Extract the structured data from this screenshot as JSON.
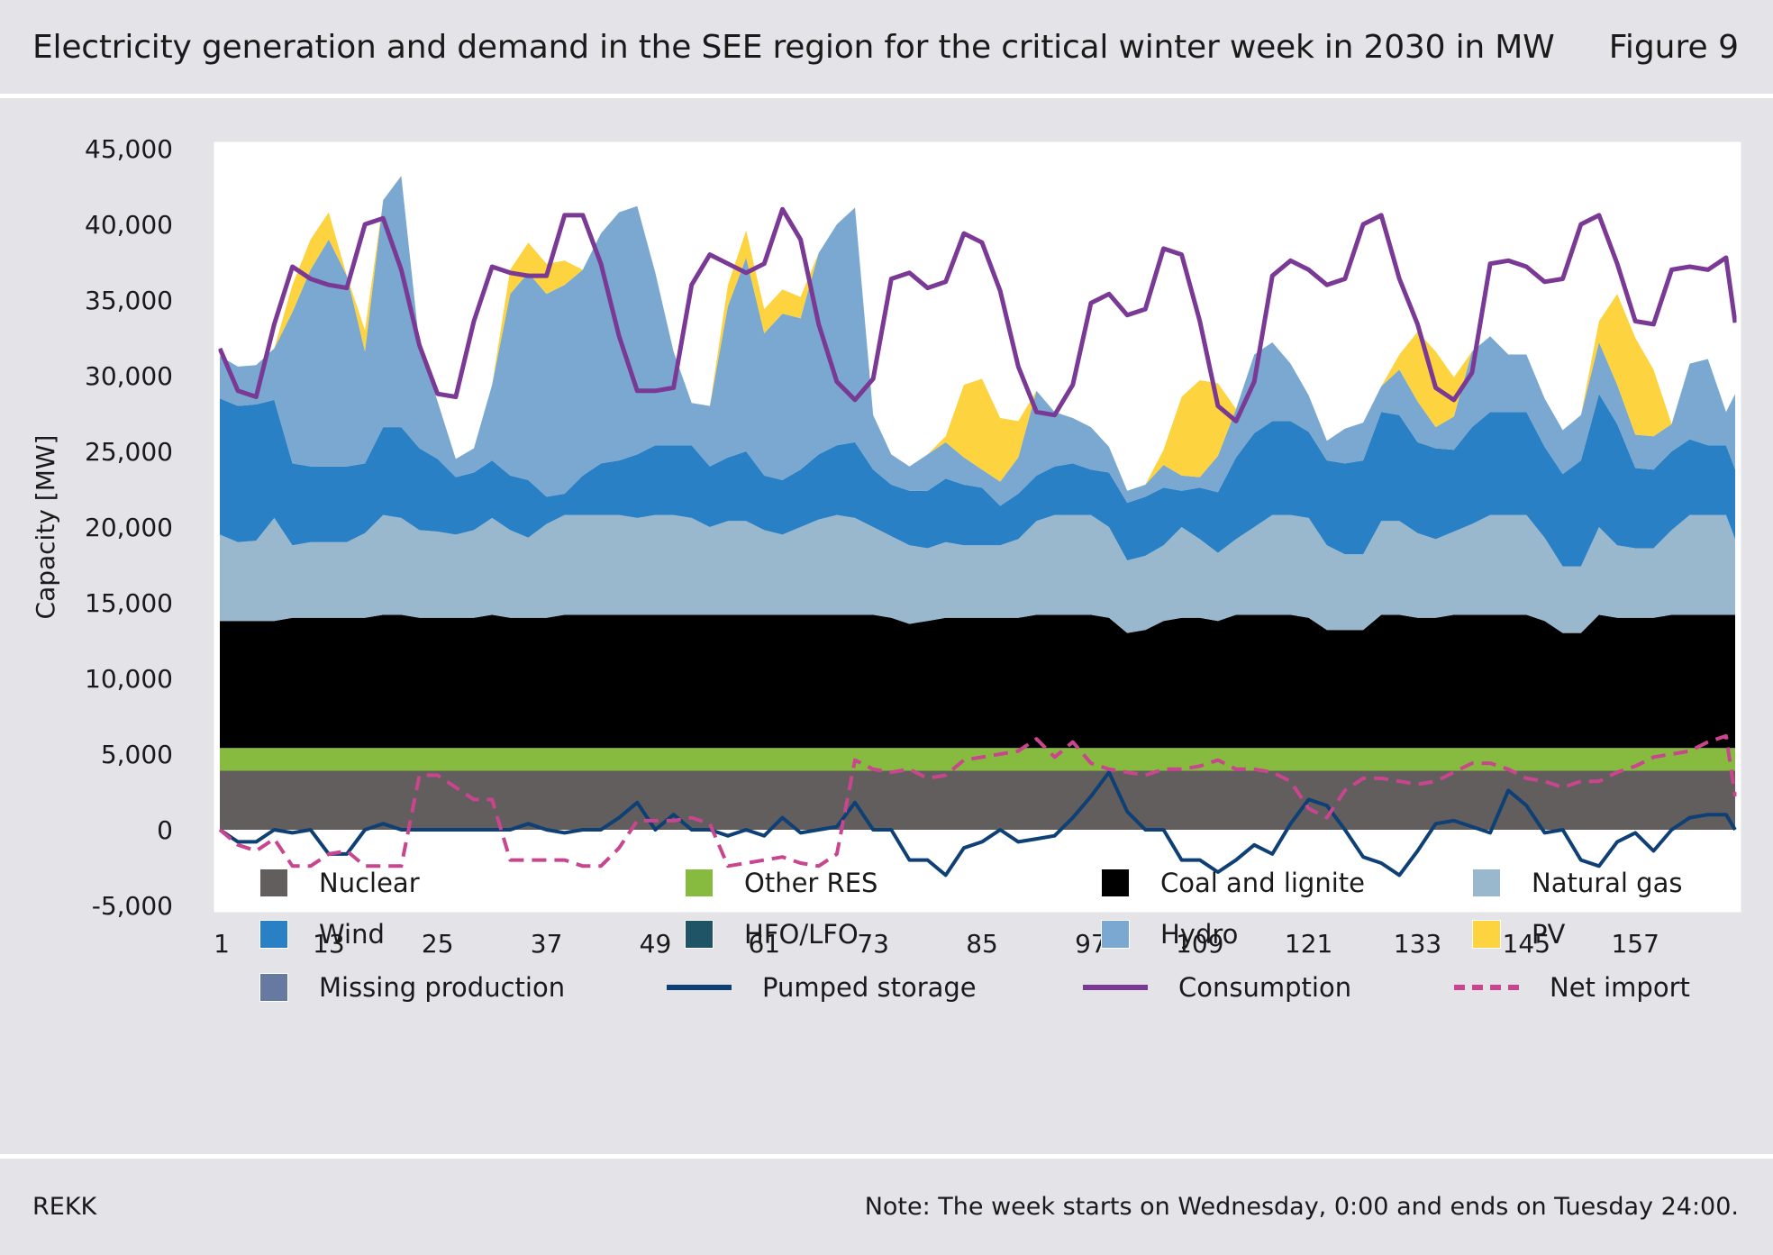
{
  "header": {
    "title": "Electricity generation and demand in the SEE region for the critical winter week in 2030 in MW",
    "figure_label": "Figure 9"
  },
  "footer": {
    "source": "REKK",
    "note": "Note: The week starts on Wednesday, 0:00 and ends on Tuesday 24:00."
  },
  "chart_data": {
    "type": "area",
    "ylabel": "Capacity [MW]",
    "xlabel": "",
    "ylim": [
      -5000,
      45000
    ],
    "xlim": [
      1,
      168
    ],
    "y_ticks": [
      "45,000",
      "40,000",
      "35,000",
      "30,000",
      "25,000",
      "20,000",
      "15,000",
      "10,000",
      "5,000",
      "0",
      "-5,000"
    ],
    "x_ticks": [
      "1",
      "13",
      "25",
      "37",
      "49",
      "61",
      "73",
      "85",
      "97",
      "109",
      "121",
      "133",
      "145",
      "157"
    ],
    "grid": false,
    "legend_position": "bottom",
    "colors": {
      "Nuclear": "#615e5d",
      "Other RES": "#86bb40",
      "Coal and lignite": "#000000",
      "Natural gas": "#9ab8cd",
      "Wind": "#2a80c4",
      "HFO/LFO": "#1f5466",
      "Hydro": "#7aa8d0",
      "PV": "#fdd340",
      "Missing production": "#6779a0",
      "Pumped storage": "#0e3f75",
      "Consumption": "#7a3994",
      "Net import": "#c9458e"
    },
    "hours": [
      1,
      3,
      5,
      7,
      9,
      11,
      13,
      15,
      17,
      19,
      21,
      23,
      25,
      27,
      29,
      31,
      33,
      35,
      37,
      39,
      41,
      43,
      45,
      47,
      49,
      51,
      53,
      55,
      57,
      59,
      61,
      63,
      65,
      67,
      69,
      71,
      73,
      75,
      77,
      79,
      81,
      83,
      85,
      87,
      89,
      91,
      93,
      95,
      97,
      99,
      101,
      103,
      105,
      107,
      109,
      111,
      113,
      115,
      117,
      119,
      121,
      123,
      125,
      127,
      129,
      131,
      133,
      135,
      137,
      139,
      141,
      143,
      145,
      147,
      149,
      151,
      153,
      155,
      157,
      159,
      161,
      163,
      165,
      167,
      168
    ],
    "stacked_series": [
      {
        "name": "Nuclear",
        "values": [
          3900,
          3900,
          3900,
          3900,
          3900,
          3900,
          3900,
          3900,
          3900,
          3900,
          3900,
          3900,
          3900,
          3900,
          3900,
          3900,
          3900,
          3900,
          3900,
          3900,
          3900,
          3900,
          3900,
          3900,
          3900,
          3900,
          3900,
          3900,
          3900,
          3900,
          3900,
          3900,
          3900,
          3900,
          3900,
          3900,
          3900,
          3900,
          3900,
          3900,
          3900,
          3900,
          3900,
          3900,
          3900,
          3900,
          3900,
          3900,
          3900,
          3900,
          3900,
          3900,
          3900,
          3900,
          3900,
          3900,
          3900,
          3900,
          3900,
          3900,
          3900,
          3900,
          3900,
          3900,
          3900,
          3900,
          3900,
          3900,
          3900,
          3900,
          3900,
          3900,
          3900,
          3900,
          3900,
          3900,
          3900,
          3900,
          3900,
          3900,
          3900,
          3900,
          3900,
          3900,
          3900
        ]
      },
      {
        "name": "Other RES",
        "values": [
          1500,
          1500,
          1500,
          1500,
          1500,
          1500,
          1500,
          1500,
          1500,
          1500,
          1500,
          1500,
          1500,
          1500,
          1500,
          1500,
          1500,
          1500,
          1500,
          1500,
          1500,
          1500,
          1500,
          1500,
          1500,
          1500,
          1500,
          1500,
          1500,
          1500,
          1500,
          1500,
          1500,
          1500,
          1500,
          1500,
          1500,
          1500,
          1500,
          1500,
          1500,
          1500,
          1500,
          1500,
          1500,
          1500,
          1500,
          1500,
          1500,
          1500,
          1500,
          1500,
          1500,
          1500,
          1500,
          1500,
          1500,
          1500,
          1500,
          1500,
          1500,
          1500,
          1500,
          1500,
          1500,
          1500,
          1500,
          1500,
          1500,
          1500,
          1500,
          1500,
          1500,
          1500,
          1500,
          1500,
          1500,
          1500,
          1500,
          1500,
          1500,
          1500,
          1500,
          1500,
          1500
        ]
      },
      {
        "name": "Coal and lignite",
        "values": [
          8400,
          8400,
          8400,
          8400,
          8600,
          8600,
          8600,
          8600,
          8600,
          8800,
          8800,
          8600,
          8600,
          8600,
          8600,
          8800,
          8600,
          8600,
          8600,
          8800,
          8800,
          8800,
          8800,
          8800,
          8800,
          8800,
          8800,
          8800,
          8800,
          8800,
          8800,
          8800,
          8800,
          8800,
          8800,
          8800,
          8800,
          8600,
          8200,
          8400,
          8600,
          8600,
          8600,
          8600,
          8600,
          8800,
          8800,
          8800,
          8800,
          8600,
          7600,
          7800,
          8400,
          8600,
          8600,
          8400,
          8800,
          8800,
          8800,
          8800,
          8600,
          7800,
          7800,
          7800,
          8800,
          8800,
          8600,
          8600,
          8800,
          8800,
          8800,
          8800,
          8800,
          8400,
          7600,
          7600,
          8800,
          8600,
          8600,
          8600,
          8800,
          8800,
          8800,
          8800,
          8800
        ]
      },
      {
        "name": "Natural gas",
        "values": [
          5700,
          5200,
          5300,
          6800,
          4800,
          5000,
          5000,
          5000,
          5600,
          6600,
          6400,
          5800,
          5700,
          5500,
          5800,
          6400,
          5800,
          5300,
          6200,
          6600,
          6600,
          6600,
          6600,
          6400,
          6600,
          6600,
          6400,
          5800,
          6200,
          6200,
          5600,
          5300,
          5800,
          6300,
          6600,
          6400,
          5800,
          5400,
          5200,
          4800,
          5000,
          4800,
          4800,
          4800,
          5200,
          6200,
          6600,
          6600,
          6600,
          6000,
          4800,
          4900,
          5000,
          6000,
          5200,
          4500,
          5000,
          5800,
          6600,
          6600,
          6600,
          5600,
          5000,
          5000,
          6200,
          6200,
          5600,
          5200,
          5500,
          6000,
          6600,
          6600,
          6600,
          5500,
          4400,
          4400,
          5800,
          4800,
          4600,
          4600,
          5600,
          6600,
          6600,
          6600,
          5000
        ]
      },
      {
        "name": "Wind",
        "values": [
          9000,
          9000,
          9000,
          7800,
          5400,
          5000,
          5000,
          5000,
          4600,
          5800,
          6000,
          5400,
          4800,
          3800,
          3800,
          3800,
          3600,
          3800,
          1800,
          1400,
          2600,
          3400,
          3600,
          4200,
          4600,
          4600,
          4800,
          4000,
          4200,
          4600,
          3600,
          3600,
          3800,
          4300,
          4600,
          5000,
          3800,
          3400,
          3600,
          3800,
          4200,
          4000,
          3800,
          2600,
          3000,
          3000,
          3200,
          3400,
          3000,
          3600,
          3800,
          3900,
          3800,
          2400,
          3400,
          4000,
          5400,
          6200,
          6200,
          6200,
          5700,
          5600,
          6000,
          6200,
          7200,
          7000,
          6000,
          6000,
          5400,
          6400,
          6800,
          6800,
          6800,
          6000,
          6100,
          7000,
          8800,
          8000,
          5300,
          5200,
          5200,
          5000,
          4600,
          4600,
          4600
        ]
      },
      {
        "name": "Hydro",
        "values": [
          2800,
          2600,
          2600,
          3400,
          10000,
          13000,
          15000,
          12600,
          7400,
          15000,
          16600,
          6800,
          3800,
          1200,
          1600,
          5000,
          12000,
          13700,
          13400,
          13800,
          13600,
          15200,
          16400,
          16400,
          11400,
          6200,
          2800,
          4000,
          10000,
          12800,
          9400,
          11000,
          10000,
          13300,
          14600,
          15500,
          3600,
          2000,
          1600,
          2400,
          2400,
          1800,
          1200,
          1600,
          2400,
          5600,
          3600,
          3000,
          2800,
          1700,
          800,
          800,
          1500,
          1000,
          700,
          2400,
          3200,
          5200,
          5200,
          3800,
          2400,
          1300,
          2300,
          2500,
          1700,
          3000,
          2700,
          1400,
          2200,
          5000,
          5000,
          3800,
          3800,
          3200,
          2900,
          3000,
          3400,
          2600,
          2200,
          2200,
          1800,
          5000,
          5700,
          2200,
          5000
        ]
      },
      {
        "name": "PV",
        "values": [
          0,
          0,
          0,
          0,
          1800,
          2000,
          1800,
          0,
          1400,
          0,
          0,
          0,
          0,
          0,
          0,
          0,
          1600,
          2000,
          2000,
          1600,
          0,
          0,
          0,
          0,
          0,
          0,
          0,
          0,
          1400,
          1800,
          1600,
          1600,
          1400,
          0,
          0,
          0,
          0,
          0,
          0,
          0,
          400,
          4800,
          6000,
          4200,
          2400,
          0,
          0,
          0,
          0,
          0,
          0,
          0,
          1000,
          5200,
          6400,
          4800,
          0,
          0,
          0,
          0,
          0,
          0,
          0,
          0,
          0,
          1000,
          4600,
          5000,
          2600,
          0,
          0,
          0,
          0,
          0,
          0,
          0,
          1400,
          6000,
          6400,
          4400,
          0,
          0,
          0,
          0,
          0
        ]
      },
      {
        "name": "HFO/LFO",
        "values": []
      },
      {
        "name": "Missing production",
        "values": []
      }
    ],
    "line_series": [
      {
        "name": "Consumption",
        "values": [
          31800,
          29000,
          28600,
          33400,
          37200,
          36400,
          36000,
          35800,
          40000,
          40400,
          37000,
          32000,
          28800,
          28600,
          33600,
          37200,
          36800,
          36600,
          36600,
          40600,
          40600,
          37400,
          32600,
          29000,
          29000,
          29200,
          36000,
          38000,
          37400,
          36800,
          37400,
          41000,
          39000,
          33400,
          29600,
          28400,
          29800,
          36400,
          36800,
          35800,
          36200,
          39400,
          38800,
          35600,
          30600,
          27600,
          27400,
          29400,
          34800,
          35400,
          34000,
          34400,
          38400,
          38000,
          33600,
          28000,
          27000,
          29600,
          36600,
          37600,
          37000,
          36000,
          36400,
          40000,
          40600,
          36400,
          33400,
          29200,
          28400,
          30200,
          37400,
          37600,
          37200,
          36200,
          36400,
          40000,
          40600,
          37400,
          33600,
          33400,
          37000,
          37200,
          37000,
          37800,
          33500
        ]
      },
      {
        "name": "Pumped storage",
        "values": [
          0,
          -800,
          -800,
          0,
          -200,
          0,
          -1600,
          -1600,
          0,
          400,
          0,
          0,
          0,
          0,
          0,
          0,
          0,
          400,
          0,
          -200,
          0,
          0,
          800,
          1800,
          0,
          1000,
          0,
          0,
          -400,
          0,
          -400,
          800,
          -200,
          0,
          200,
          1800,
          0,
          0,
          -2000,
          -2000,
          -3000,
          -1200,
          -800,
          0,
          -800,
          -600,
          -400,
          800,
          2200,
          3800,
          1200,
          0,
          0,
          -2000,
          -2000,
          -2800,
          -2000,
          -1000,
          -1600,
          400,
          2000,
          1600,
          0,
          -1800,
          -2200,
          -3000,
          -1400,
          400,
          600,
          200,
          -200,
          2600,
          1600,
          -200,
          0,
          -2000,
          -2400,
          -800,
          -200,
          -1400,
          0,
          800,
          1000,
          1000,
          0
        ]
      },
      {
        "name": "Net import",
        "values": [
          0,
          -1000,
          -1400,
          -600,
          -2400,
          -2400,
          -1600,
          -1400,
          -2400,
          -2400,
          -2400,
          3600,
          3600,
          2800,
          2000,
          2000,
          -2000,
          -2000,
          -2000,
          -2000,
          -2400,
          -2400,
          -1200,
          600,
          600,
          600,
          800,
          400,
          -2400,
          -2200,
          -2000,
          -1800,
          -2200,
          -2400,
          -1600,
          4600,
          4000,
          3800,
          4000,
          3400,
          3600,
          4600,
          4800,
          5000,
          5200,
          6000,
          4800,
          5800,
          4400,
          4000,
          3800,
          3600,
          4000,
          4000,
          4200,
          4600,
          4000,
          4000,
          3800,
          3200,
          1400,
          800,
          2600,
          3400,
          3400,
          3200,
          3000,
          3200,
          3800,
          4400,
          4400,
          4000,
          3400,
          3200,
          2800,
          3200,
          3200,
          3800,
          4200,
          4800,
          5000,
          5200,
          5800,
          6200,
          2200
        ]
      }
    ]
  },
  "legend": [
    {
      "label": "Nuclear",
      "kind": "swatch",
      "color": "#615e5d"
    },
    {
      "label": "Other RES",
      "kind": "swatch",
      "color": "#86bb40"
    },
    {
      "label": "Coal and lignite",
      "kind": "swatch",
      "color": "#000000"
    },
    {
      "label": "Natural gas",
      "kind": "swatch",
      "color": "#9ab8cd"
    },
    {
      "label": "Wind",
      "kind": "swatch",
      "color": "#2a80c4"
    },
    {
      "label": "HFO/LFO",
      "kind": "swatch",
      "color": "#1f5466"
    },
    {
      "label": "Hydro",
      "kind": "swatch",
      "color": "#7aa8d0"
    },
    {
      "label": "PV",
      "kind": "swatch",
      "color": "#fdd340"
    },
    {
      "label": "Missing production",
      "kind": "swatch",
      "color": "#6779a0"
    },
    {
      "label": "Pumped storage",
      "kind": "line",
      "color": "#0e3f75"
    },
    {
      "label": "Consumption",
      "kind": "line",
      "color": "#7a3994"
    },
    {
      "label": "Net import",
      "kind": "dash",
      "color": "#c9458e"
    }
  ]
}
